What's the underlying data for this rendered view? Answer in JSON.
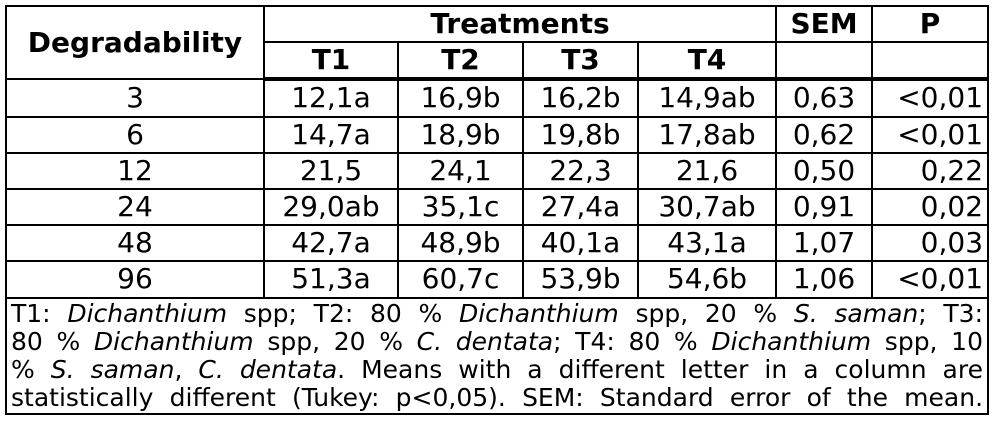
{
  "table": {
    "header": {
      "degradability": "Degradability",
      "treatments": "Treatments",
      "sem": "SEM",
      "p": "P",
      "treatment_columns": [
        "T1",
        "T2",
        "T3",
        "T4"
      ]
    },
    "rows": [
      {
        "degradability": "3",
        "t1": "12,1a",
        "t2": "16,9b",
        "t3": "16,2b",
        "t4": "14,9ab",
        "sem": "0,63",
        "p": "<0,01"
      },
      {
        "degradability": "6",
        "t1": "14,7a",
        "t2": "18,9b",
        "t3": "19,8b",
        "t4": "17,8ab",
        "sem": "0,62",
        "p": "<0,01"
      },
      {
        "degradability": "12",
        "t1": "21,5",
        "t2": "24,1",
        "t3": "22,3",
        "t4": "21,6",
        "sem": "0,50",
        "p": "0,22"
      },
      {
        "degradability": "24",
        "t1": "29,0ab",
        "t2": "35,1c",
        "t3": "27,4a",
        "t4": "30,7ab",
        "sem": "0,91",
        "p": "0,02"
      },
      {
        "degradability": "48",
        "t1": "42,7a",
        "t2": "48,9b",
        "t3": "40,1a",
        "t4": "43,1a",
        "sem": "1,07",
        "p": "0,03"
      },
      {
        "degradability": "96",
        "t1": "51,3a",
        "t2": "60,7c",
        "t3": "53,9b",
        "t4": "54,6b",
        "sem": "1,06",
        "p": "<0,01"
      }
    ],
    "footnote_lines": [
      [
        {
          "text": "T1: "
        },
        {
          "text": "Dichanthium",
          "italic": true
        },
        {
          "text": " spp; T2: 80 % "
        },
        {
          "text": "Dichanthium",
          "italic": true
        },
        {
          "text": " spp, 20 % "
        },
        {
          "text": "S. saman",
          "italic": true
        },
        {
          "text": "; T3:"
        }
      ],
      [
        {
          "text": "80 % "
        },
        {
          "text": "Dichanthium",
          "italic": true
        },
        {
          "text": " spp, 20 % "
        },
        {
          "text": "C. dentata",
          "italic": true
        },
        {
          "text": "; T4: 80 % "
        },
        {
          "text": "Dichanthium",
          "italic": true
        },
        {
          "text": " spp, 10"
        }
      ],
      [
        {
          "text": "% "
        },
        {
          "text": "S. saman",
          "italic": true
        },
        {
          "text": ", "
        },
        {
          "text": "C. dentata",
          "italic": true
        },
        {
          "text": ". Means with a different letter in a column are"
        }
      ],
      [
        {
          "text": "statistically different (Tukey: p<0,05). SEM: Standard error of the mean."
        }
      ]
    ]
  },
  "colors": {
    "border": "#000000",
    "text": "#000000",
    "background": "#ffffff"
  }
}
